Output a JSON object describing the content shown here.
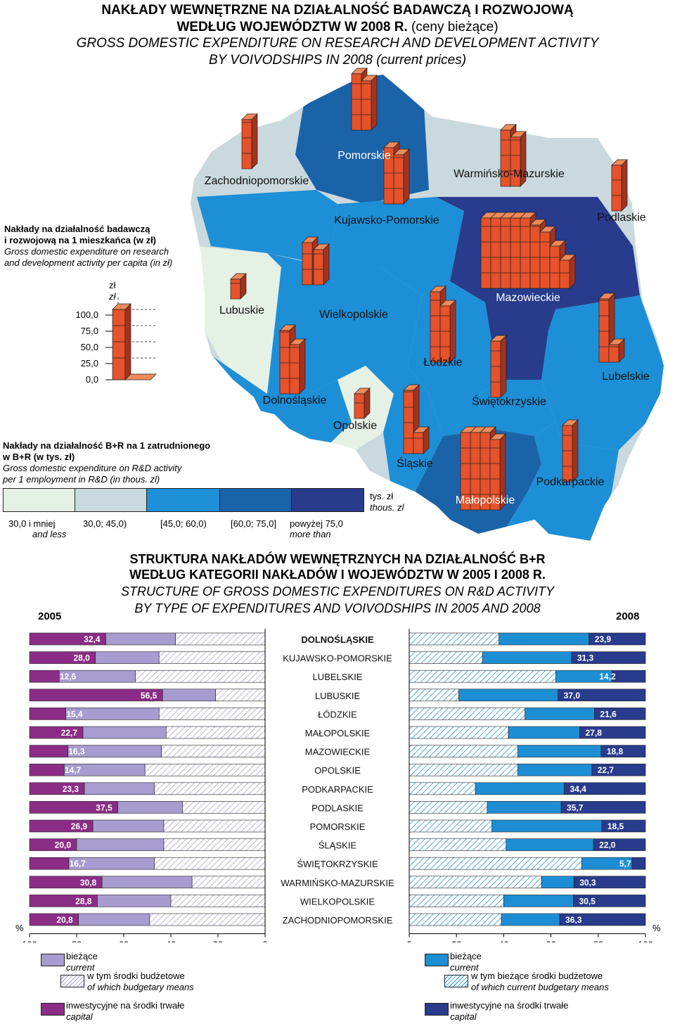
{
  "header": {
    "title_pl_line1": "NAKŁADY WEWNĘTRZNE NA DZIAŁALNOŚĆ BADAWCZĄ I ROZWOJOWĄ",
    "title_pl_line2_bold": "WEDŁUG WOJEWÓDZTW W 2008 R.",
    "title_pl_line2_normal": " (ceny bieżące)",
    "title_en_line1": "GROSS DOMESTIC EXPENDITURE ON RESEARCH AND DEVELOPMENT ACTIVITY",
    "title_en_line2": "BY VOIVODSHIPS IN 2008 (current prices)"
  },
  "map": {
    "regions": [
      {
        "name": "Pomorskie",
        "class": 4
      },
      {
        "name": "Zachodniopomorskie",
        "class": 2
      },
      {
        "name": "Warmińsko-Mazurskie",
        "class": 2
      },
      {
        "name": "Podlaskie",
        "class": 2
      },
      {
        "name": "Kujawsko-Pomorskie",
        "class": 3
      },
      {
        "name": "Lubuskie",
        "class": 1
      },
      {
        "name": "Wielkopolskie",
        "class": 3
      },
      {
        "name": "Mazowieckie",
        "class": 5
      },
      {
        "name": "Łódzkie",
        "class": 3
      },
      {
        "name": "Lubelskie",
        "class": 3
      },
      {
        "name": "Dolnośląskie",
        "class": 3
      },
      {
        "name": "Świętokrzyskie",
        "class": 3
      },
      {
        "name": "Opolskie",
        "class": 1
      },
      {
        "name": "Śląskie",
        "class": 3
      },
      {
        "name": "Małopolskie",
        "class": 4
      },
      {
        "name": "Podkarpackie",
        "class": 3
      }
    ],
    "legend_percapita": {
      "title_pl_line1": "Nakłady na działalność badawczą",
      "title_pl_line2": "i rozwojową na 1 mieszkańca (w zł)",
      "title_en_line1": "Gross domestic expenditure on research",
      "title_en_line2": "and development activity per capita (in zł)",
      "unit1": "zł",
      "unit2": "zł",
      "scale": [
        "100,0",
        "75,0",
        "50,0",
        "25,0",
        "0,0"
      ]
    },
    "legend_classes": {
      "title_pl_line1": "Nakłady na działalność B+R na 1 zatrudnionego",
      "title_pl_line2": "w B+R (w tys. zł)",
      "title_en_line1": "Gross domestic expenditure on  R&D activity",
      "title_en_line2": "per 1 employment in R&D (in thous. zl)",
      "unit_pl": "tys. zł",
      "unit_en": "thous. zl",
      "colors": [
        "#e6f1e6",
        "#c9d9dd",
        "#1d8fd6",
        "#1b63a8",
        "#283b8c"
      ],
      "labels": [
        {
          "pl": "30,0 i mniej",
          "en": "and less"
        },
        {
          "pl": "30,0; 45,0)",
          "en": ""
        },
        {
          "pl": "[45,0; 60,0)",
          "en": ""
        },
        {
          "pl": "[60,0; 75,0]",
          "en": ""
        },
        {
          "pl": "powyżej 75,0",
          "en": "more than"
        }
      ]
    }
  },
  "chart_data": {
    "type": "bar",
    "title_pl_line1": "STRUKTURA NAKŁADÓW WEWNĘTRZNYCH NA DZIAŁALNOŚĆ B+R",
    "title_pl_line2": "WEDŁUG KATEGORII NAKŁADÓW I WOJEWÓDZTW W 2005 I 2008 R.",
    "title_en_line1": "STRUCTURE OF GROSS DOMESTIC EXPENDITURES ON R&D ACTIVITY",
    "title_en_line2": "BY TYPE OF EXPENDITURES AND VOIVODSHIPS IN 2005 AND 2008",
    "year_left": "2005",
    "year_right": "2008",
    "unit": "%",
    "ticks_left": [
      "100",
      "80",
      "60",
      "40",
      "20",
      "0"
    ],
    "ticks_right": [
      "0",
      "20",
      "40",
      "60",
      "80",
      "100"
    ],
    "categories": [
      "DOLNOŚLĄSKIE",
      "KUJAWSKO-POMORSKIE",
      "LUBELSKIE",
      "LUBUSKIE",
      "ŁÓDZKIE",
      "MAŁOPOLSKIE",
      "MAZOWIECKIE",
      "OPOLSKIE",
      "PODKARPACKIE",
      "PODLASKIE",
      "POMORSKIE",
      "ŚLĄSKIE",
      "ŚWIĘTOKRZYSKIE",
      "WARMIŃSKO-MAZURSKIE",
      "WIELKOPOLSKIE",
      "ZACHODNIOPOMORSKIE"
    ],
    "capital_2005": [
      32.4,
      28.0,
      12.6,
      56.5,
      15.4,
      22.7,
      16.3,
      14.7,
      23.3,
      37.5,
      26.9,
      20.0,
      16.7,
      30.8,
      28.8,
      20.8
    ],
    "capital_2005_labels": [
      "32,4",
      "28,0",
      "12,6",
      "56,5",
      "15,4",
      "22,7",
      "16,3",
      "14,7",
      "23,3",
      "37,5",
      "26,9",
      "20,0",
      "16,7",
      "30,8",
      "28,8",
      "20,8"
    ],
    "budgetary_2005": [
      38,
      45,
      55,
      21,
      45,
      42,
      44,
      51,
      47,
      35,
      43,
      43,
      47,
      31,
      40,
      49
    ],
    "capital_2008": [
      23.9,
      31.3,
      14.2,
      37.0,
      21.6,
      27.8,
      18.8,
      22.7,
      34.4,
      35.7,
      18.5,
      22.0,
      5.7,
      30.3,
      30.5,
      36.3
    ],
    "capital_2008_labels": [
      "23,9",
      "31,3",
      "14,2",
      "37,0",
      "21,6",
      "27,8",
      "18,8",
      "22,7",
      "34,4",
      "35,7",
      "18,5",
      "22,0",
      "5,7",
      "30,3",
      "30,5",
      "36,3"
    ],
    "budgetary_2008": [
      38,
      31,
      62,
      21,
      49,
      42,
      46,
      46,
      28,
      33,
      35,
      41,
      73,
      56,
      40,
      39
    ],
    "legend_left": {
      "current_pl": "bieżące",
      "current_en": "current",
      "budget_pl": "w tym środki budżetowe",
      "budget_en": "of which budgetary means",
      "capital_pl": "inwestycyjne na środki trwałe",
      "capital_en": "capital"
    },
    "legend_right": {
      "current_pl": "bieżące",
      "current_en": "current",
      "budget_pl": "w tym bieżące środki budżetowe",
      "budget_en": "of which current budgetary means",
      "capital_pl": "inwestycyjne na środki trwałe",
      "capital_en": "capital"
    },
    "colors": {
      "current_2005": "#a79ccf",
      "capital_2005": "#8b2d86",
      "current_2008": "#1e8ed4",
      "capital_2008": "#283b8c"
    }
  }
}
